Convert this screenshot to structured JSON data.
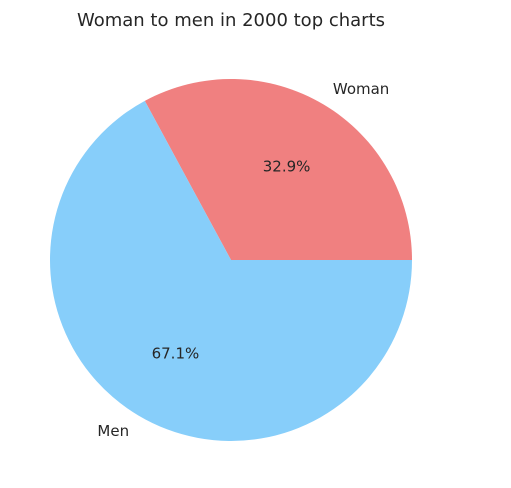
{
  "chart_data": {
    "type": "pie",
    "title": "Woman to men in 2000 top charts",
    "slices": [
      {
        "label": "Woman",
        "value": 32.9,
        "pct_label": "32.9%",
        "color": "#f08080"
      },
      {
        "label": "Men",
        "value": 67.1,
        "pct_label": "67.1%",
        "color": "#87cefa"
      }
    ],
    "start_angle_deg": 0,
    "direction": "counterclockwise",
    "legend": "none"
  }
}
